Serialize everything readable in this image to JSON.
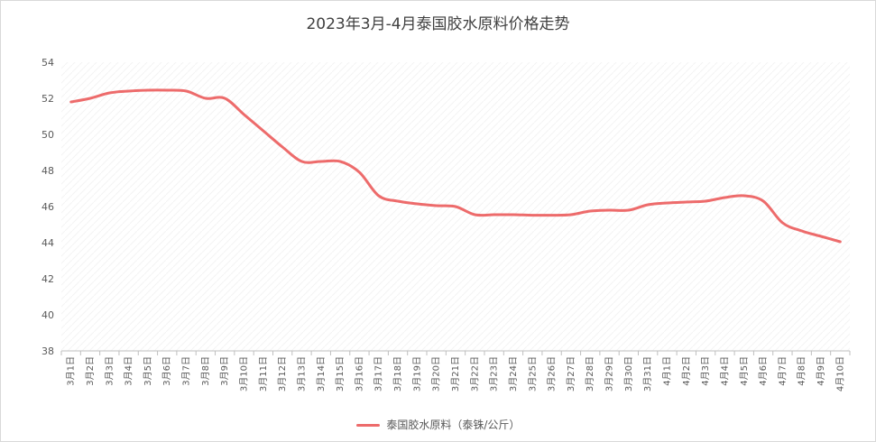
{
  "chart_data": {
    "type": "line",
    "title": "2023年3月-4月泰国胶水原料价格走势",
    "xlabel": "",
    "ylabel": "",
    "ylim": [
      38,
      54
    ],
    "yticks": [
      38,
      40,
      42,
      44,
      46,
      48,
      50,
      52,
      54
    ],
    "grid": false,
    "legend_position": "bottom",
    "categories": [
      "3月1日",
      "3月2日",
      "3月3日",
      "3月4日",
      "3月5日",
      "3月6日",
      "3月7日",
      "3月8日",
      "3月9日",
      "3月10日",
      "3月11日",
      "3月12日",
      "3月13日",
      "3月14日",
      "3月15日",
      "3月16日",
      "3月17日",
      "3月18日",
      "3月19日",
      "3月20日",
      "3月21日",
      "3月22日",
      "3月23日",
      "3月24日",
      "3月25日",
      "3月26日",
      "3月27日",
      "3月28日",
      "3月29日",
      "3月30日",
      "3月31日",
      "4月1日",
      "4月2日",
      "4月3日",
      "4月4日",
      "4月5日",
      "4月6日",
      "4月7日",
      "4月8日",
      "4月9日",
      "4月10日"
    ],
    "series": [
      {
        "name": "泰国胶水原料（泰铢/公斤）",
        "color": "#ed6b6b",
        "values": [
          51.8,
          52.0,
          52.3,
          52.4,
          52.45,
          52.45,
          52.4,
          52.0,
          52.0,
          51.1,
          50.2,
          49.3,
          48.5,
          48.5,
          48.5,
          47.9,
          46.6,
          46.3,
          46.15,
          46.05,
          46.0,
          45.55,
          45.55,
          45.55,
          45.52,
          45.52,
          45.55,
          45.75,
          45.8,
          45.8,
          46.1,
          46.2,
          46.25,
          46.3,
          46.5,
          46.6,
          46.3,
          45.1,
          44.65,
          44.35,
          44.05
        ]
      }
    ]
  }
}
